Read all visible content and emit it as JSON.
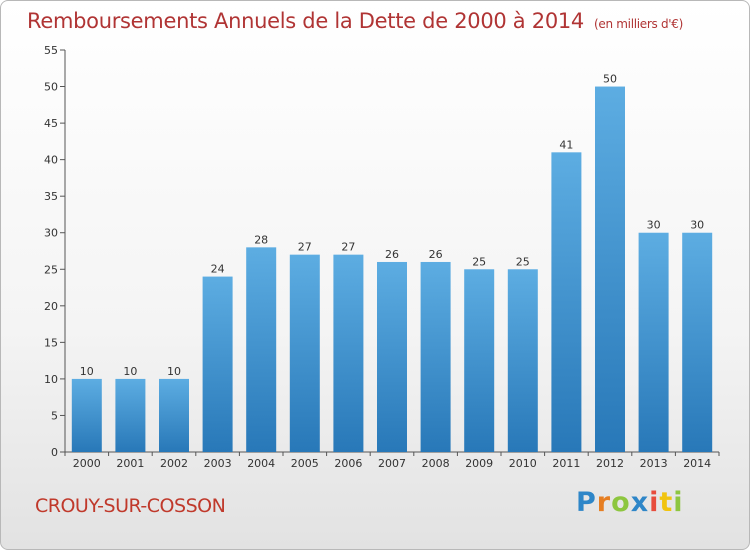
{
  "header": {
    "title": "Remboursements Annuels de la Dette de 2000 à 2014",
    "unit": "(en milliers d'€)"
  },
  "footer": {
    "commune": "CROUY-SUR-COSSON",
    "logo": [
      "P",
      "r",
      "o",
      "x",
      "i",
      "t",
      "i"
    ]
  },
  "chart_data": {
    "type": "bar",
    "title": "Remboursements Annuels de la Dette de 2000 à 2014",
    "subtitle": "(en milliers d'€)",
    "xlabel": "",
    "ylabel": "",
    "categories": [
      "2000",
      "2001",
      "2002",
      "2003",
      "2004",
      "2005",
      "2006",
      "2007",
      "2008",
      "2009",
      "2010",
      "2011",
      "2012",
      "2013",
      "2014"
    ],
    "values": [
      10,
      10,
      10,
      24,
      28,
      27,
      27,
      26,
      26,
      25,
      25,
      41,
      50,
      30,
      30
    ],
    "ylim": [
      0,
      55
    ],
    "yticks": [
      0,
      5,
      10,
      15,
      20,
      25,
      30,
      35,
      40,
      45,
      50,
      55
    ],
    "grid": false,
    "legend": "none",
    "bar_color_top": "#5dade2",
    "bar_color_bottom": "#2878b8"
  }
}
